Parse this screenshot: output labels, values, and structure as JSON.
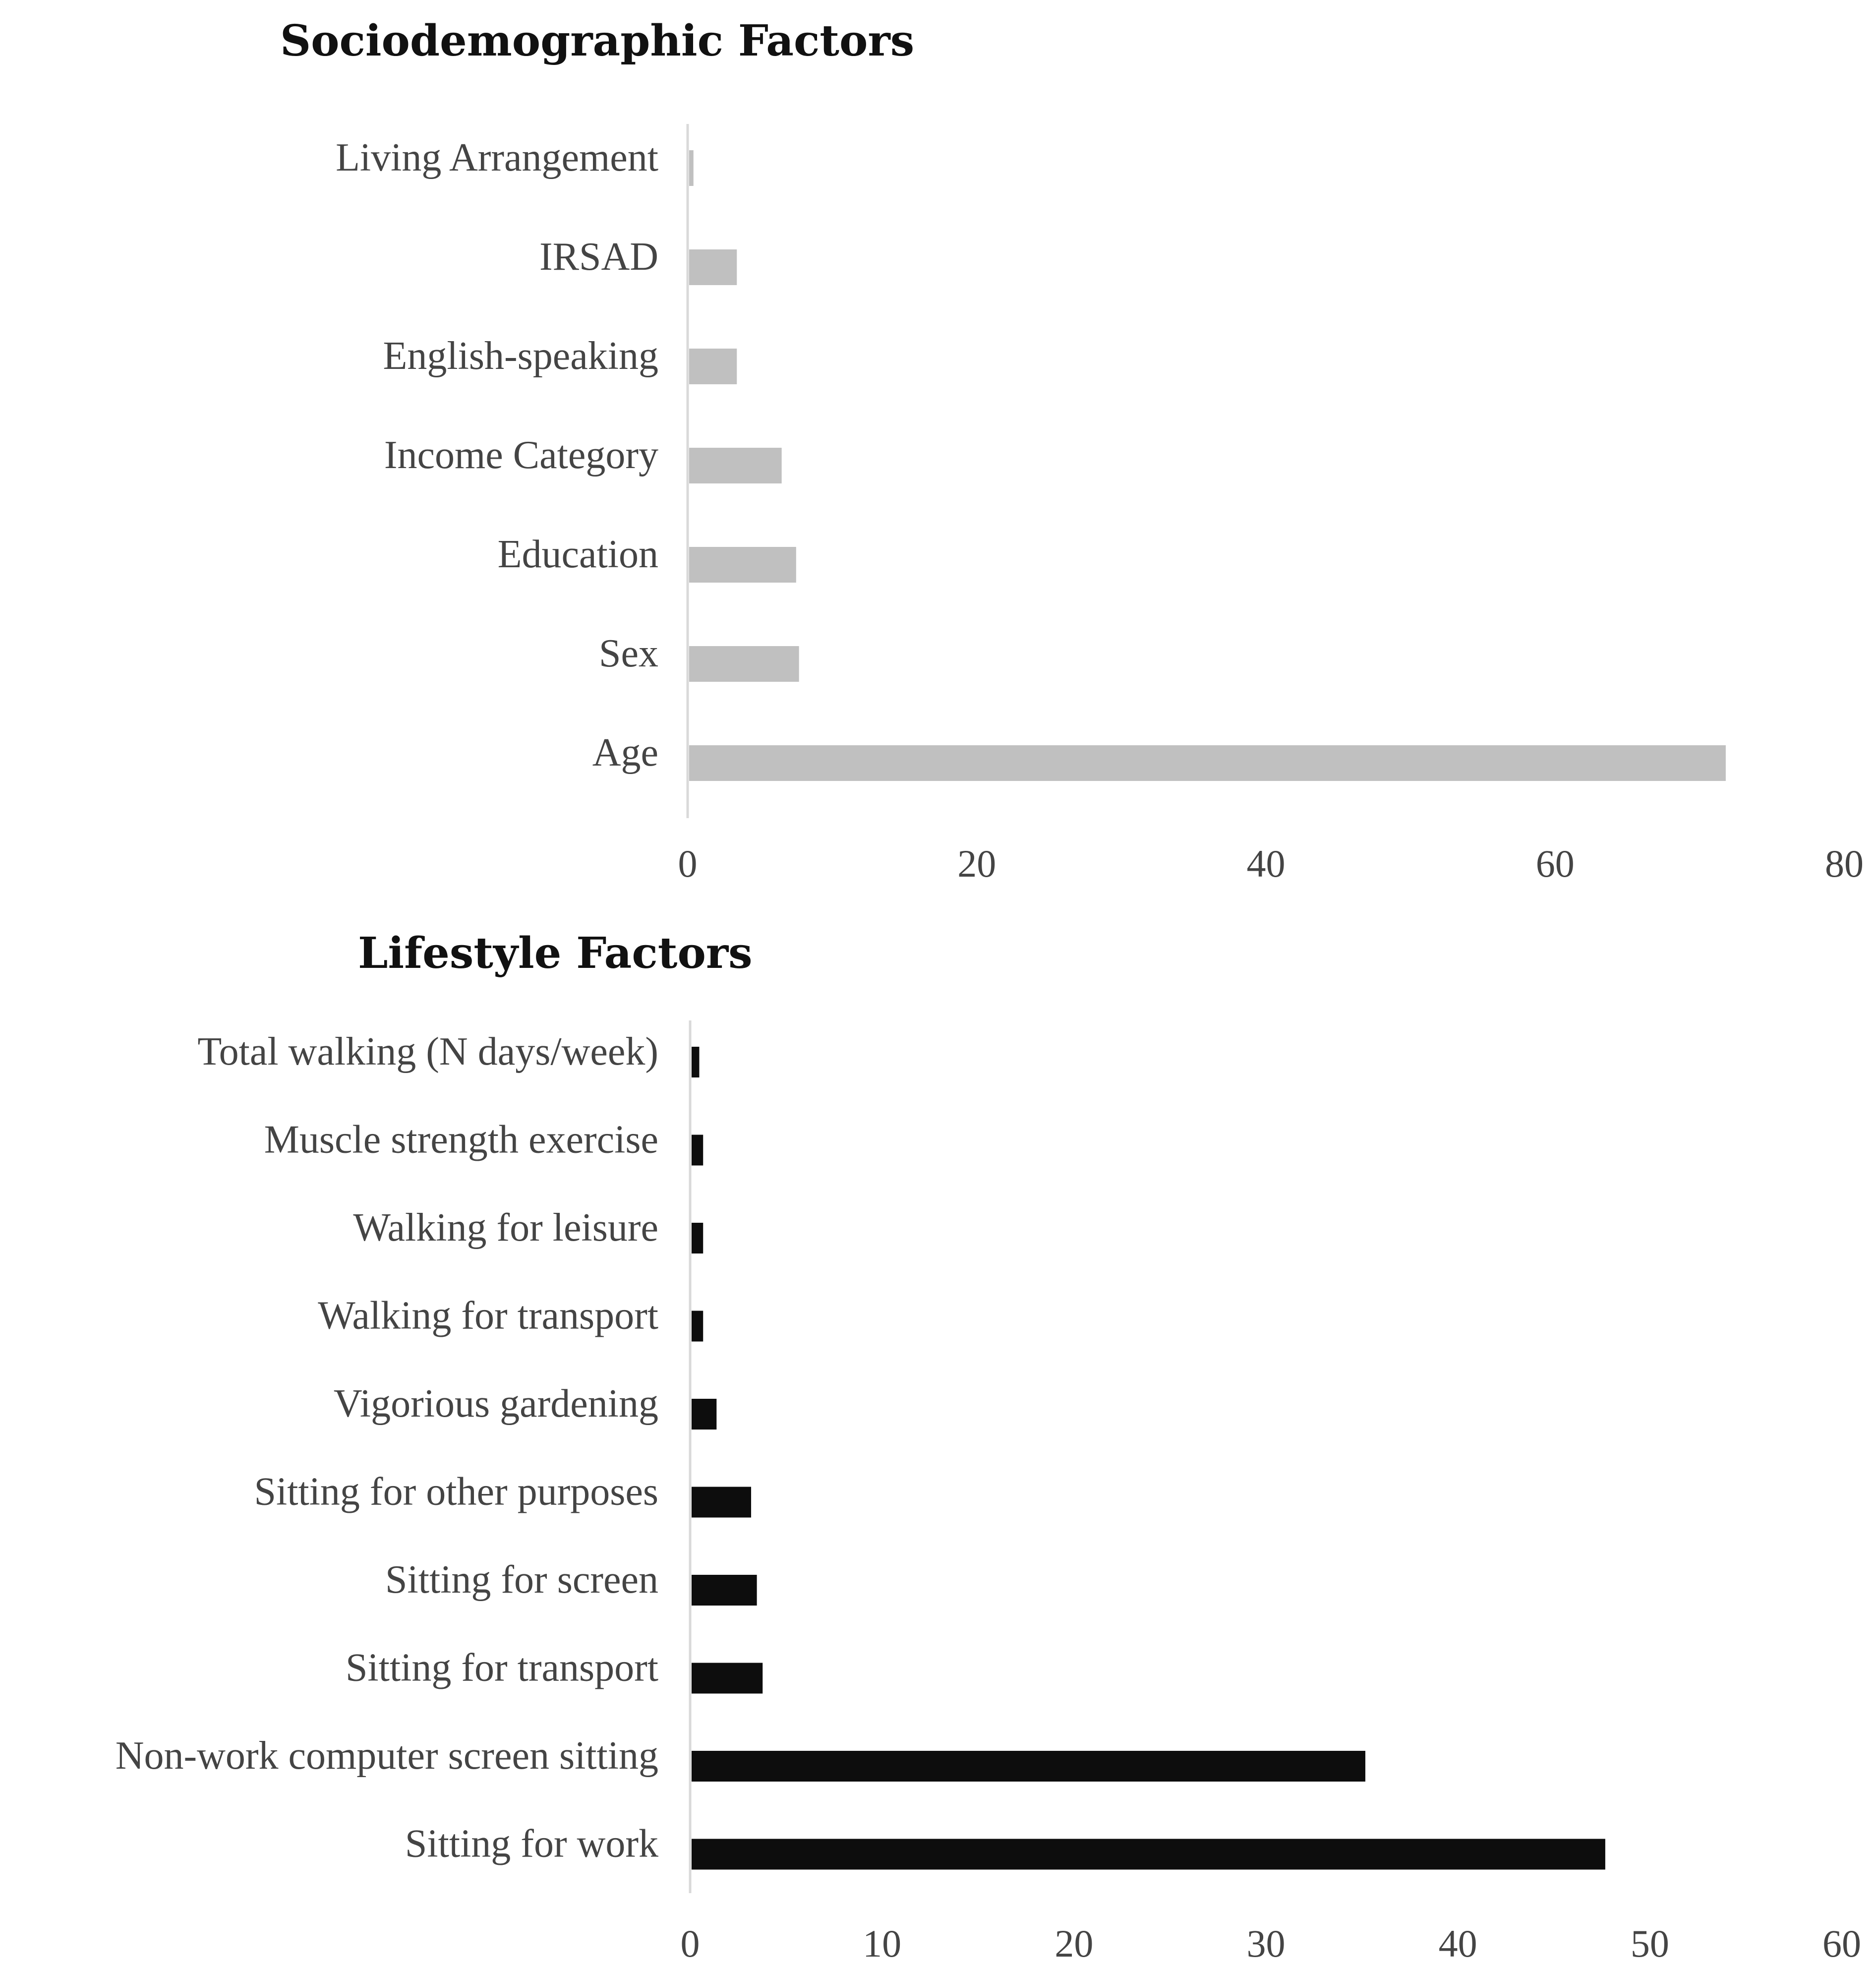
{
  "chart_data": [
    {
      "type": "bar",
      "orientation": "horizontal",
      "title": "Sociodemographic Factors",
      "categories": [
        "Living Arrangement",
        "IRSAD",
        "English-speaking",
        "Income Category",
        "Education",
        "Sex",
        "Age"
      ],
      "values": [
        0.3,
        3.3,
        3.3,
        6.4,
        7.4,
        7.6,
        71.7
      ],
      "xlim": [
        0,
        80
      ],
      "xticks": [
        "0",
        "20",
        "40",
        "60",
        "80"
      ],
      "grid": false,
      "bar_color": "#c0c0c0"
    },
    {
      "type": "bar",
      "orientation": "horizontal",
      "title": "Lifestyle Factors",
      "categories": [
        "Total walking (N days/week)",
        "Muscle strength exercise",
        "Walking for leisure",
        "Walking for transport",
        "Vigorious gardening",
        "Sitting for other purposes",
        "Sitting for screen",
        "Sitting for transport",
        "Non-work computer screen sitting",
        "Sitting for work"
      ],
      "values": [
        0.4,
        0.6,
        0.6,
        0.6,
        1.3,
        3.1,
        3.4,
        3.7,
        35.1,
        47.6
      ],
      "xlim": [
        0,
        60
      ],
      "xticks": [
        "0",
        "10",
        "20",
        "30",
        "40",
        "50",
        "60"
      ],
      "grid": false,
      "bar_color": "#0d0d0d"
    }
  ]
}
